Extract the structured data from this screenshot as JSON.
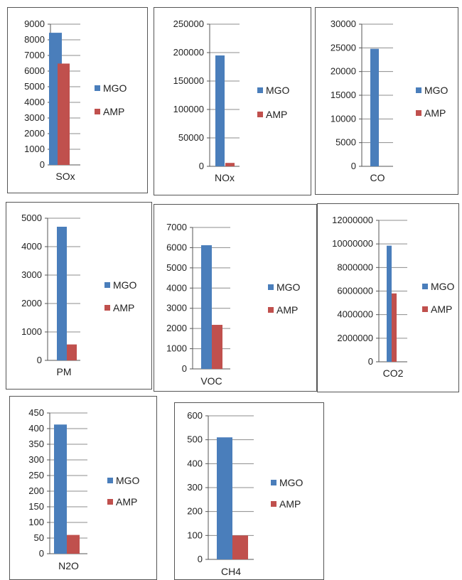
{
  "colors": {
    "MGO": "#4a7ebb",
    "AMP": "#c0504d",
    "grid": "#8c8c8c"
  },
  "chart_data": [
    {
      "type": "bar",
      "categories": [
        "SOx"
      ],
      "series": [
        {
          "name": "MGO",
          "values": [
            8450
          ]
        },
        {
          "name": "AMP",
          "values": [
            6480
          ]
        }
      ],
      "ylim": [
        0,
        9000
      ],
      "yticks": [
        "0",
        "1000",
        "2000",
        "3000",
        "4000",
        "5000",
        "6000",
        "7000",
        "8000",
        "9000"
      ],
      "grid": true,
      "legend": "right"
    },
    {
      "type": "bar",
      "categories": [
        "NOx"
      ],
      "series": [
        {
          "name": "MGO",
          "values": [
            195000
          ]
        },
        {
          "name": "AMP",
          "values": [
            6000
          ]
        }
      ],
      "ylim": [
        0,
        250000
      ],
      "yticks": [
        "0",
        "50000",
        "100000",
        "150000",
        "200000",
        "250000"
      ],
      "grid": true,
      "legend": "right"
    },
    {
      "type": "bar",
      "categories": [
        "CO"
      ],
      "series": [
        {
          "name": "MGO",
          "values": [
            24800
          ]
        },
        {
          "name": "AMP",
          "values": [
            0
          ]
        }
      ],
      "ylim": [
        0,
        30000
      ],
      "yticks": [
        "0",
        "5000",
        "10000",
        "15000",
        "20000",
        "25000",
        "30000"
      ],
      "grid": true,
      "legend": "right"
    },
    {
      "type": "bar",
      "categories": [
        "PM"
      ],
      "series": [
        {
          "name": "MGO",
          "values": [
            4700
          ]
        },
        {
          "name": "AMP",
          "values": [
            560
          ]
        }
      ],
      "ylim": [
        0,
        5000
      ],
      "yticks": [
        "0",
        "1000",
        "2000",
        "3000",
        "4000",
        "5000"
      ],
      "grid": true,
      "legend": "right"
    },
    {
      "type": "bar",
      "categories": [
        "VOC"
      ],
      "series": [
        {
          "name": "MGO",
          "values": [
            6120
          ]
        },
        {
          "name": "AMP",
          "values": [
            2180
          ]
        }
      ],
      "ylim": [
        0,
        7000
      ],
      "yticks": [
        "0",
        "1000",
        "2000",
        "3000",
        "4000",
        "5000",
        "6000",
        "7000"
      ],
      "grid": true,
      "legend": "right"
    },
    {
      "type": "bar",
      "categories": [
        "CO2"
      ],
      "series": [
        {
          "name": "MGO",
          "values": [
            9850000
          ]
        },
        {
          "name": "AMP",
          "values": [
            5800000
          ]
        }
      ],
      "ylim": [
        0,
        12000000
      ],
      "yticks": [
        "0",
        "2000000",
        "4000000",
        "6000000",
        "8000000",
        "10000000",
        "12000000"
      ],
      "grid": true,
      "legend": "right"
    },
    {
      "type": "bar",
      "categories": [
        "N2O"
      ],
      "series": [
        {
          "name": "MGO",
          "values": [
            413
          ]
        },
        {
          "name": "AMP",
          "values": [
            60
          ]
        }
      ],
      "ylim": [
        0,
        450
      ],
      "yticks": [
        "0",
        "50",
        "100",
        "150",
        "200",
        "250",
        "300",
        "350",
        "400",
        "450"
      ],
      "grid": true,
      "legend": "right"
    },
    {
      "type": "bar",
      "categories": [
        "CH4"
      ],
      "series": [
        {
          "name": "MGO",
          "values": [
            510
          ]
        },
        {
          "name": "AMP",
          "values": [
            100
          ]
        }
      ],
      "ylim": [
        0,
        600
      ],
      "yticks": [
        "0",
        "100",
        "200",
        "300",
        "400",
        "500",
        "600"
      ],
      "grid": true,
      "legend": "right"
    }
  ]
}
